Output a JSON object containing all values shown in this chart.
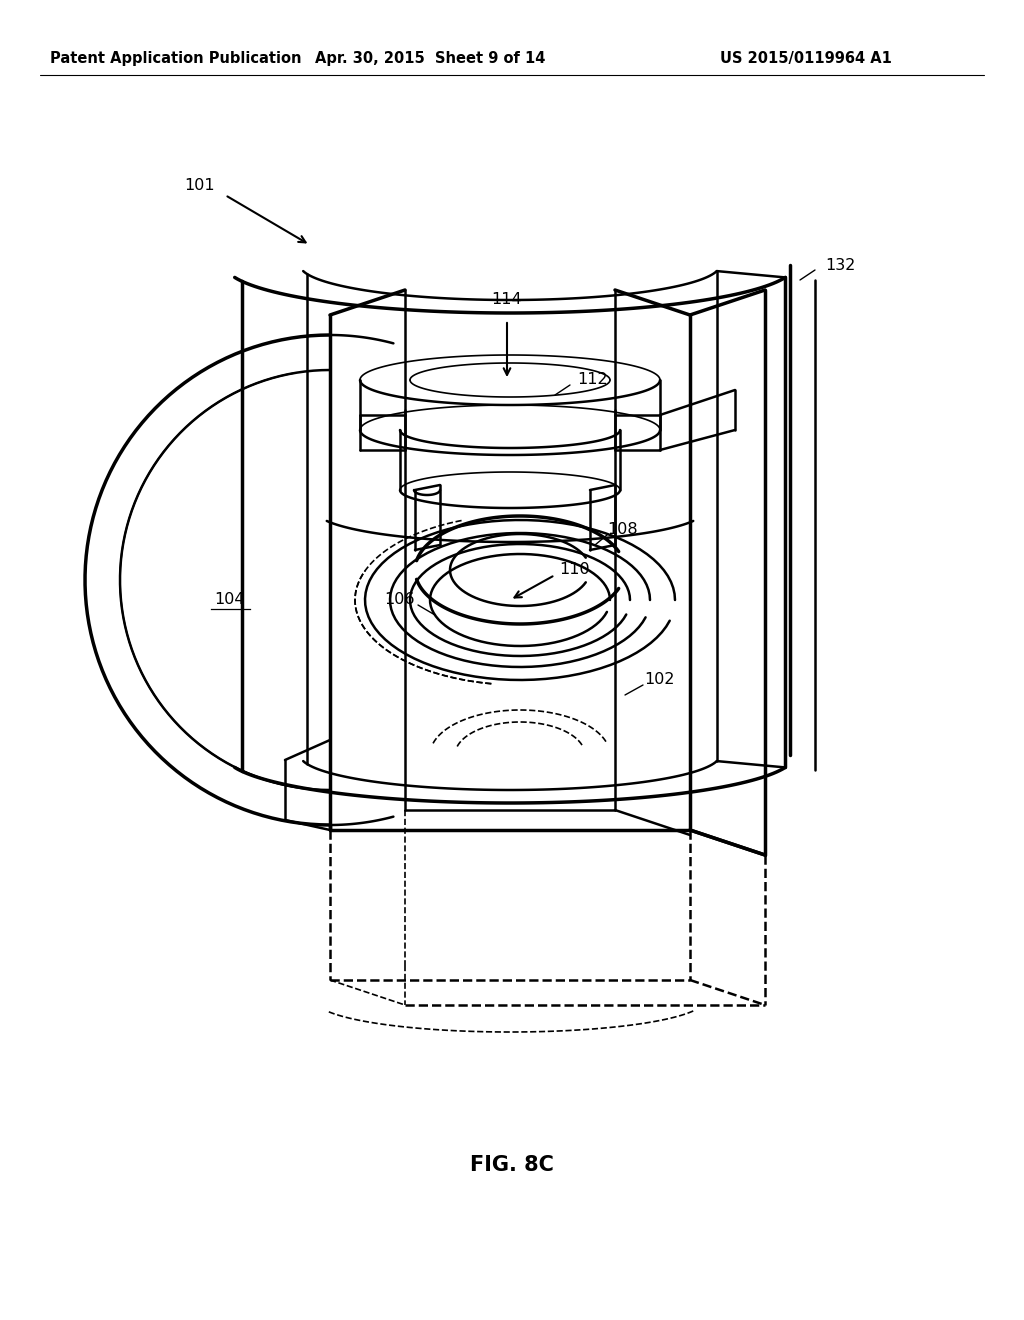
{
  "bg_color": "#ffffff",
  "line_color": "#000000",
  "header_left": "Patent Application Publication",
  "header_mid": "Apr. 30, 2015  Sheet 9 of 14",
  "header_right": "US 2015/0119964 A1",
  "fig_label": "FIG. 8C",
  "title_fontsize": 10.5,
  "label_fontsize": 11.5,
  "fig_label_fontsize": 15
}
